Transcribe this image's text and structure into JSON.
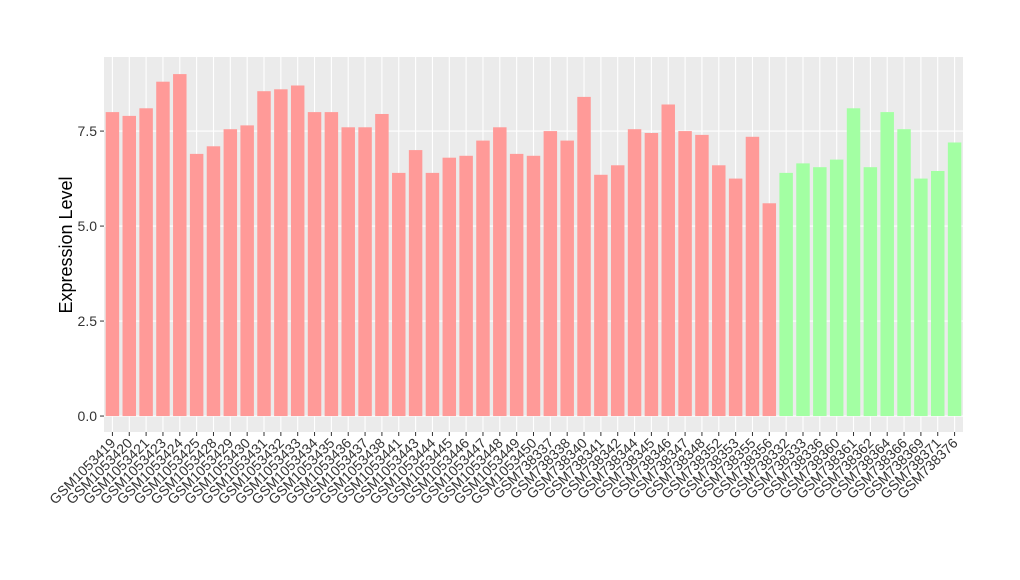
{
  "chart_data": {
    "type": "bar",
    "y_label": "Expression Level",
    "categories": [
      "GSM1053419",
      "GSM1053420",
      "GSM1053421",
      "GSM1053423",
      "GSM1053424",
      "GSM1053425",
      "GSM1053428",
      "GSM1053429",
      "GSM1053430",
      "GSM1053431",
      "GSM1053432",
      "GSM1053433",
      "GSM1053434",
      "GSM1053435",
      "GSM1053436",
      "GSM1053437",
      "GSM1053438",
      "GSM1053441",
      "GSM1053443",
      "GSM1053444",
      "GSM1053445",
      "GSM1053446",
      "GSM1053447",
      "GSM1053448",
      "GSM1053449",
      "GSM1053450",
      "GSM738337",
      "GSM738338",
      "GSM738340",
      "GSM738341",
      "GSM738342",
      "GSM738344",
      "GSM738345",
      "GSM738346",
      "GSM738347",
      "GSM738348",
      "GSM738352",
      "GSM738353",
      "GSM738355",
      "GSM738356",
      "GSM738332",
      "GSM738333",
      "GSM738336",
      "GSM738360",
      "GSM738361",
      "GSM738362",
      "GSM738364",
      "GSM738366",
      "GSM738369",
      "GSM738371",
      "GSM738376"
    ],
    "values": [
      8.0,
      7.9,
      8.1,
      8.8,
      9.0,
      6.9,
      7.1,
      7.55,
      7.65,
      8.55,
      8.6,
      8.7,
      8.0,
      8.0,
      7.6,
      7.6,
      7.95,
      6.4,
      7.0,
      6.4,
      6.8,
      6.85,
      7.25,
      7.6,
      6.9,
      6.85,
      7.5,
      7.25,
      8.4,
      6.35,
      6.6,
      7.55,
      7.45,
      8.2,
      7.5,
      7.4,
      6.6,
      6.25,
      7.35,
      5.6,
      6.4,
      6.65,
      6.55,
      6.75,
      8.1,
      6.55,
      8.0,
      7.55,
      6.25,
      6.45,
      7.2
    ],
    "colors": [
      "#ff9a98",
      "#ff9a98",
      "#ff9a98",
      "#ff9a98",
      "#ff9a98",
      "#ff9a98",
      "#ff9a98",
      "#ff9a98",
      "#ff9a98",
      "#ff9a98",
      "#ff9a98",
      "#ff9a98",
      "#ff9a98",
      "#ff9a98",
      "#ff9a98",
      "#ff9a98",
      "#ff9a98",
      "#ff9a98",
      "#ff9a98",
      "#ff9a98",
      "#ff9a98",
      "#ff9a98",
      "#ff9a98",
      "#ff9a98",
      "#ff9a98",
      "#ff9a98",
      "#ff9a98",
      "#ff9a98",
      "#ff9a98",
      "#ff9a98",
      "#ff9a98",
      "#ff9a98",
      "#ff9a98",
      "#ff9a98",
      "#ff9a98",
      "#ff9a98",
      "#ff9a98",
      "#ff9a98",
      "#ff9a98",
      "#ff9a98",
      "#a3ffa3",
      "#a3ffa3",
      "#a3ffa3",
      "#a3ffa3",
      "#a3ffa3",
      "#a3ffa3",
      "#a3ffa3",
      "#a3ffa3",
      "#a3ffa3",
      "#a3ffa3",
      "#a3ffa3"
    ],
    "ylim": [
      -0.42,
      9.45
    ],
    "yticks": [
      {
        "value": 0,
        "label": "0.0"
      },
      {
        "value": 2.5,
        "label": "2.5"
      },
      {
        "value": 5,
        "label": "5.0"
      },
      {
        "value": 7.5,
        "label": "7.5"
      }
    ],
    "grid": true
  }
}
